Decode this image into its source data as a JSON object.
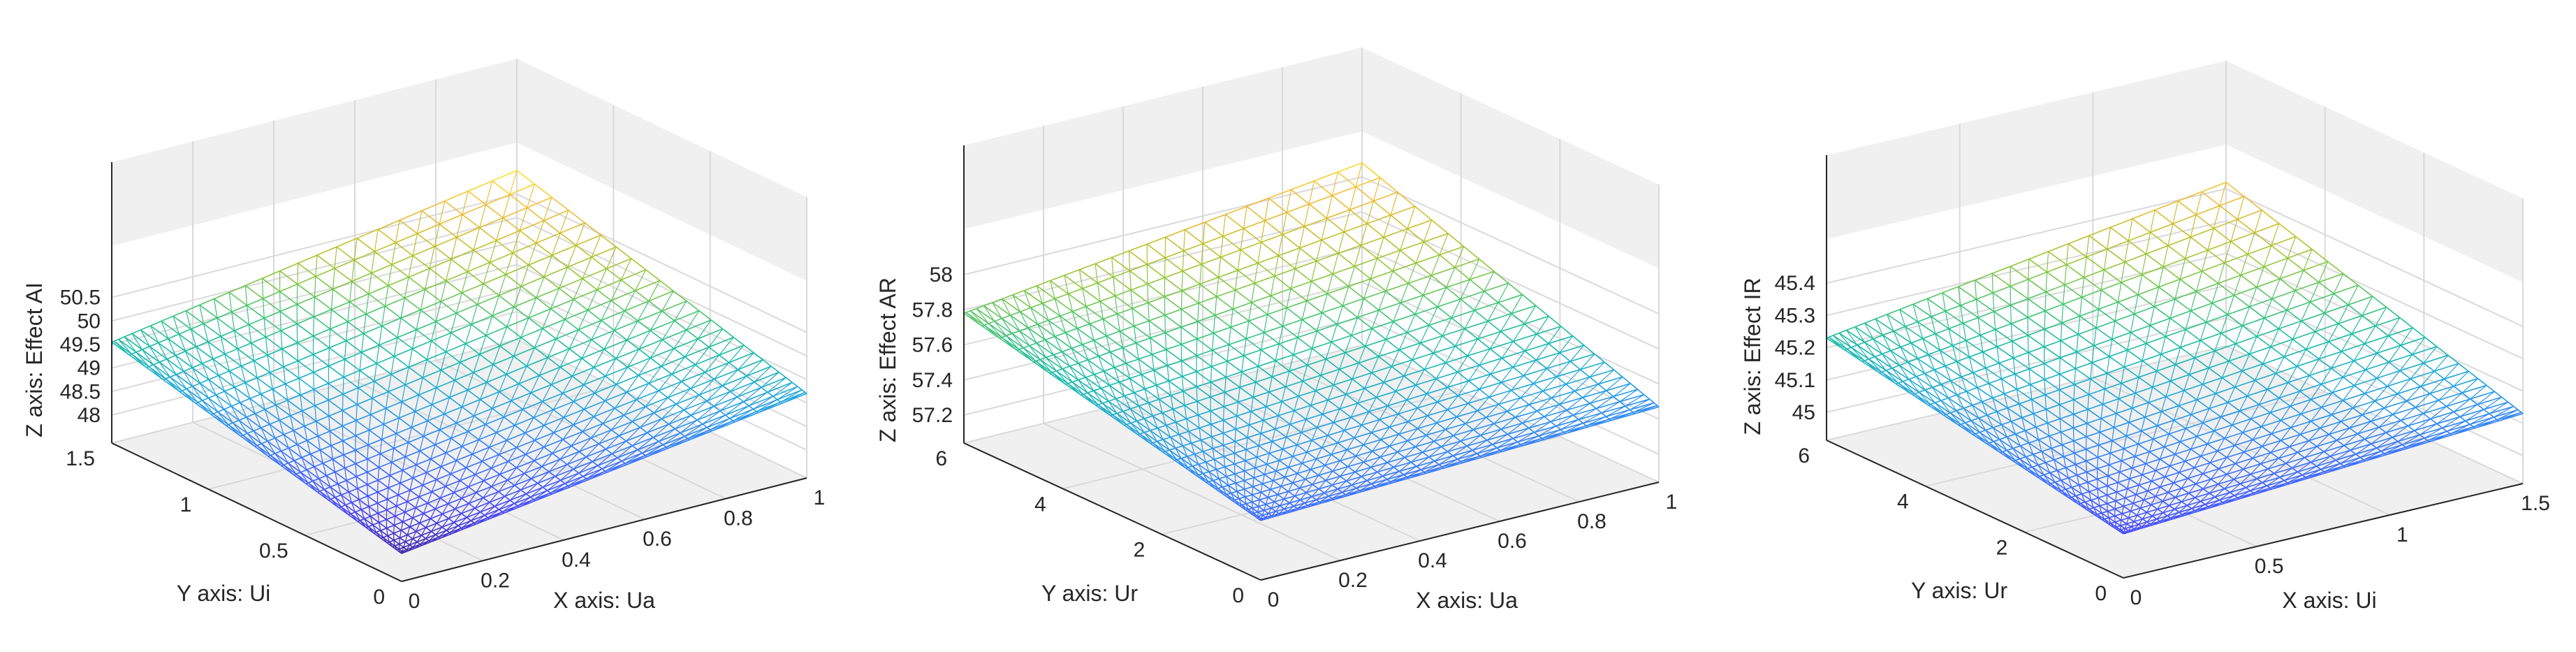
{
  "colors": {
    "pane_fill": "#f0f0f0",
    "pane_edge": "#dcdcdc",
    "grid": "#d9d9d9",
    "axis": "#262626",
    "text": "#262626",
    "colormap": [
      "#3e26a8",
      "#4743f8",
      "#3c68ff",
      "#2d8df2",
      "#1ea9d7",
      "#14bba8",
      "#3fc477",
      "#8dc73a",
      "#c9bf28",
      "#f5bb3a",
      "#f9e929"
    ]
  },
  "chart_data": [
    {
      "type": "mesh",
      "xlabel": "X axis: Ua",
      "ylabel": "Y axis: Ui",
      "zlabel": "Z axis: Effect AI",
      "xlim": [
        0,
        1
      ],
      "ylim": [
        0,
        1.5
      ],
      "zlim": [
        48,
        51
      ],
      "x_tick_labels": [
        "0",
        "0.2",
        "0.4",
        "0.6",
        "0.8",
        "1"
      ],
      "y_tick_labels": [
        "0",
        "0.5",
        "1",
        "1.5"
      ],
      "z_tick_labels": [
        "48",
        "48.5",
        "49",
        "49.5",
        "50",
        "50.5"
      ],
      "surface_corners": {
        "z_at_x0_y0": 48.0,
        "z_at_x1_y0": 49.2,
        "z_at_x0_y1": 49.55,
        "z_at_x1_y1": 51.0
      },
      "grid": true,
      "box": false
    },
    {
      "type": "mesh",
      "xlabel": "X axis: Ua",
      "ylabel": "Y axis: Ur",
      "zlabel": "Z axis: Effect AR",
      "xlim": [
        0,
        1
      ],
      "ylim": [
        0,
        6
      ],
      "zlim": [
        57.2,
        58.1
      ],
      "x_tick_labels": [
        "0",
        "0.2",
        "0.4",
        "0.6",
        "0.8",
        "1"
      ],
      "y_tick_labels": [
        "0",
        "2",
        "4",
        "6"
      ],
      "z_tick_labels": [
        "57.2",
        "57.4",
        "57.6",
        "57.8",
        "58"
      ],
      "surface_corners": {
        "z_at_x0_y0": 57.38,
        "z_at_x1_y0": 57.47,
        "z_at_x0_y1": 57.78,
        "z_at_x1_y1": 58.08
      },
      "grid": true,
      "box": false
    },
    {
      "type": "mesh",
      "xlabel": "X axis: Ui",
      "ylabel": "Y axis: Ur",
      "zlabel": "Z axis: Effect IR",
      "xlim": [
        0,
        1.5
      ],
      "ylim": [
        0,
        6
      ],
      "zlim": [
        45,
        45.45
      ],
      "x_tick_labels": [
        "0",
        "0.5",
        "1",
        "1.5"
      ],
      "y_tick_labels": [
        "0",
        "2",
        "4",
        "6"
      ],
      "z_tick_labels": [
        "45",
        "45.1",
        "45.2",
        "45.3",
        "45.4"
      ],
      "surface_corners": {
        "z_at_x0_y0": 45.05,
        "z_at_x1_y0": 45.13,
        "z_at_x0_y1": 45.23,
        "z_at_x1_y1": 45.42
      },
      "grid": true,
      "box": false
    }
  ]
}
